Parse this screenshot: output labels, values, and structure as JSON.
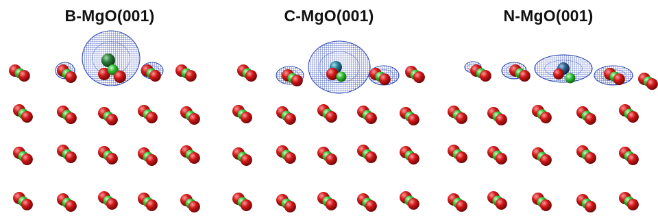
{
  "panels": [
    {
      "title": "B-MgO(001)",
      "dopant_color": "#2e7a3a"
    },
    {
      "title": "C-MgO(001)",
      "dopant_color": "#2a7f9a"
    },
    {
      "title": "N-MgO(001)",
      "dopant_color": "#2f5f8a"
    }
  ],
  "colors": {
    "oxygen": "#d11818",
    "magnesium": "#35c035",
    "isosurface": "#1f3cb0",
    "background": "#ffffff"
  }
}
